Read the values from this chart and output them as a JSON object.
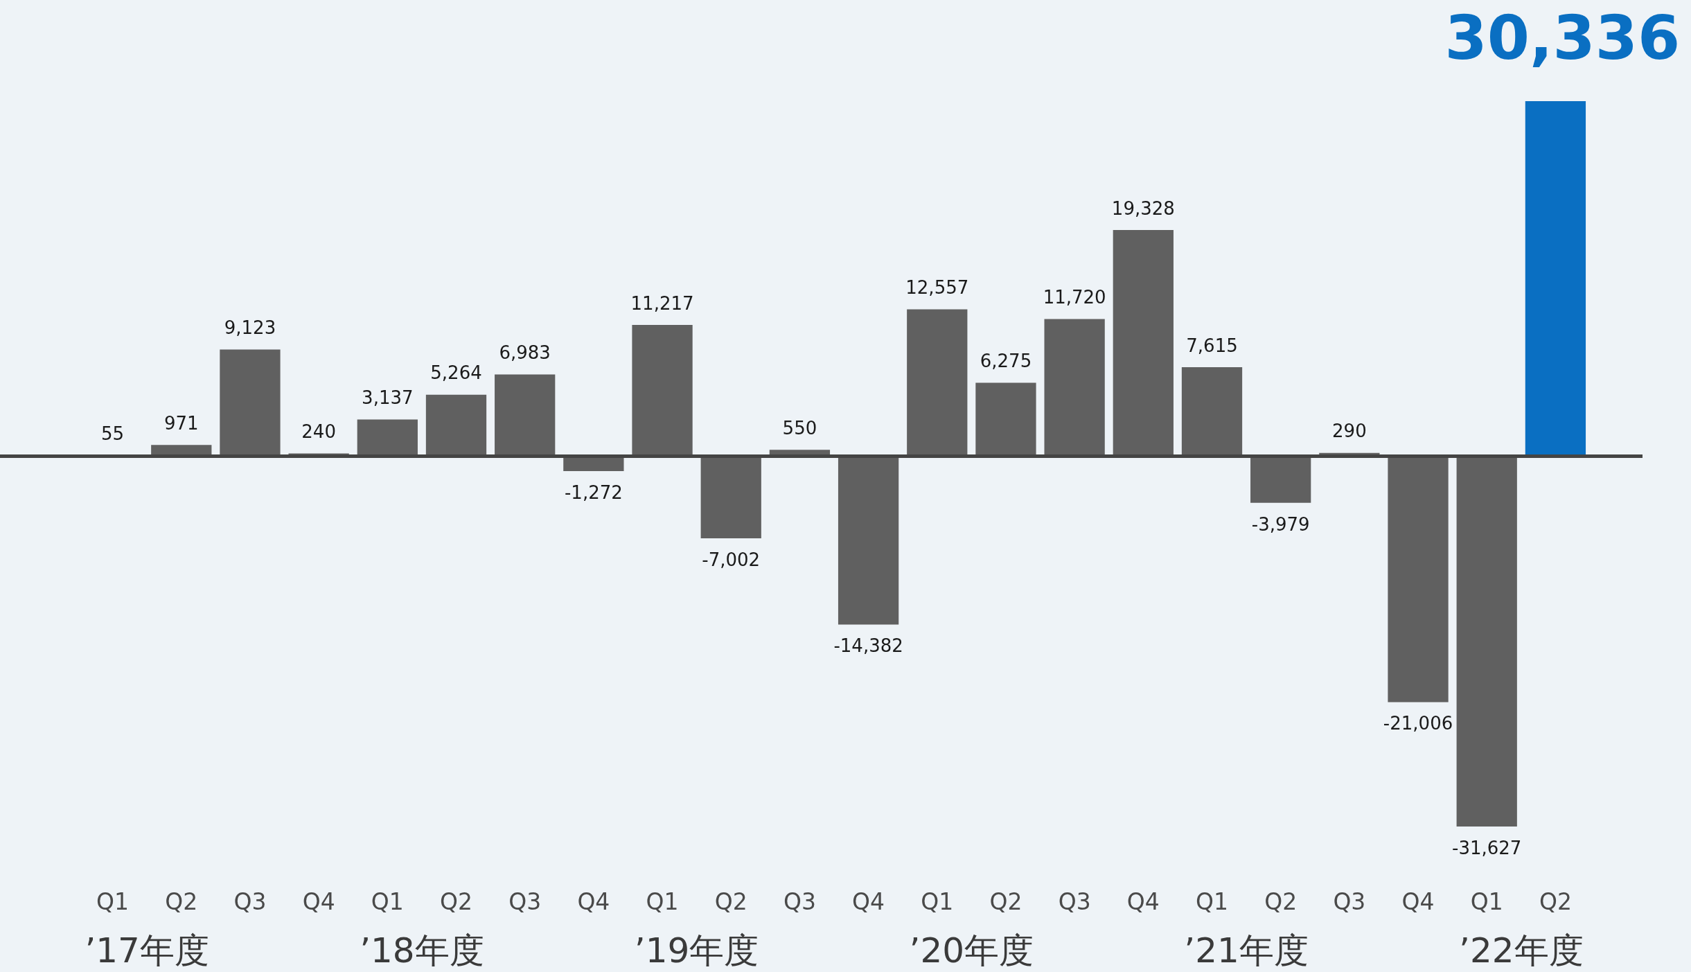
{
  "chart_data": {
    "type": "bar",
    "categories": [
      "Q1",
      "Q2",
      "Q3",
      "Q4",
      "Q1",
      "Q2",
      "Q3",
      "Q4",
      "Q1",
      "Q2",
      "Q3",
      "Q4",
      "Q1",
      "Q2",
      "Q3",
      "Q4",
      "Q1",
      "Q2",
      "Q3",
      "Q4",
      "Q1",
      "Q2"
    ],
    "values": [
      55,
      971,
      9123,
      240,
      3137,
      5264,
      6983,
      -1272,
      11217,
      -7002,
      550,
      -14382,
      12557,
      6275,
      11720,
      19328,
      7615,
      -3979,
      290,
      -21006,
      -31627,
      30336
    ],
    "value_labels": [
      "55",
      "971",
      "9,123",
      "240",
      "3,137",
      "5,264",
      "6,983",
      "-1,272",
      "11,217",
      "-7,002",
      "550",
      "-14,382",
      "12,557",
      "6,275",
      "11,720",
      "19,328",
      "7,615",
      "-3,979",
      "290",
      "-21,006",
      "-31,627",
      "30,336"
    ],
    "colors": [
      "#606060",
      "#606060",
      "#606060",
      "#606060",
      "#606060",
      "#606060",
      "#606060",
      "#606060",
      "#606060",
      "#606060",
      "#606060",
      "#606060",
      "#606060",
      "#606060",
      "#606060",
      "#606060",
      "#606060",
      "#606060",
      "#606060",
      "#606060",
      "#606060",
      "#0a6fc2"
    ],
    "annotations": [
      "’17年度",
      "’18年度",
      "’19年度",
      "’20年度",
      "’21年度",
      "’22年度"
    ],
    "grid": false,
    "legend": false
  }
}
